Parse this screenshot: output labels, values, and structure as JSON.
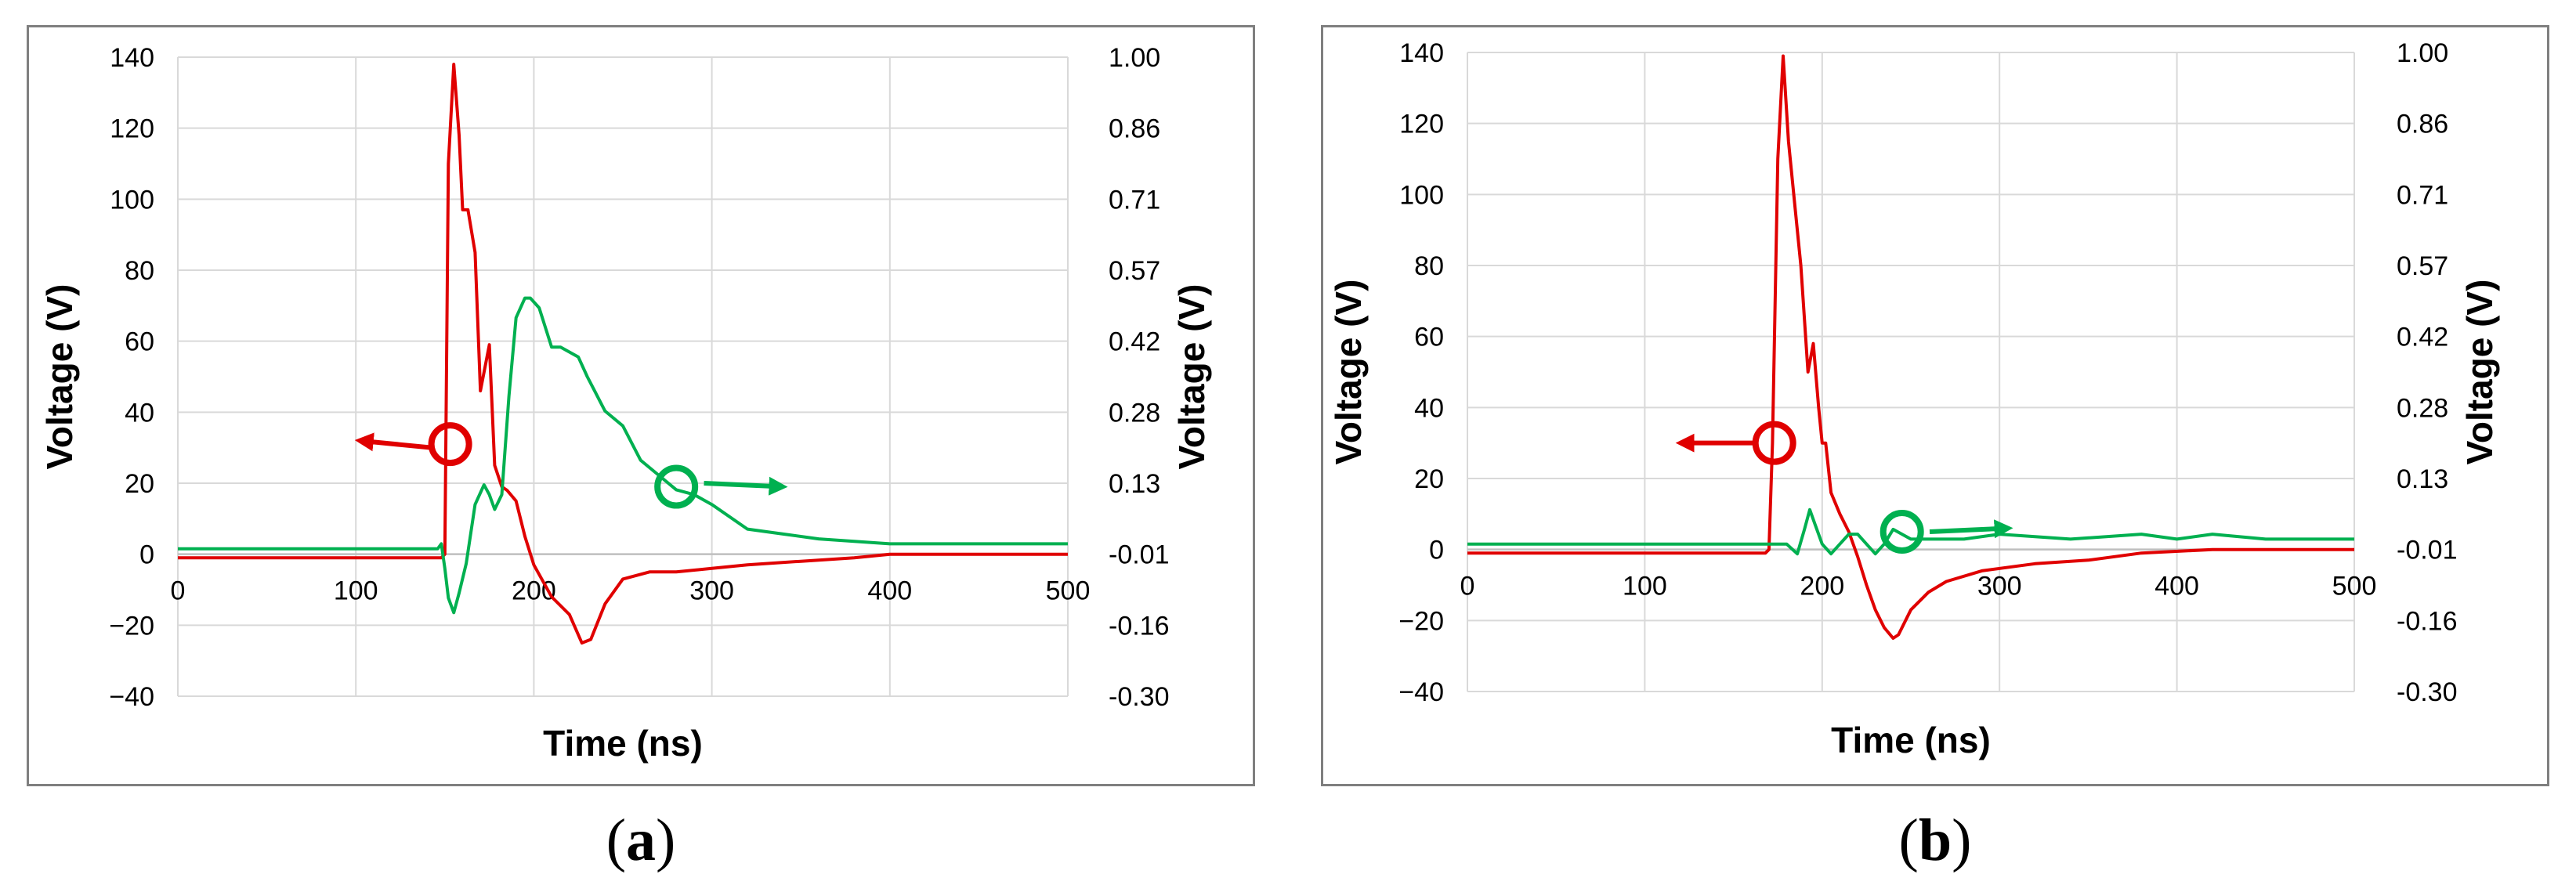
{
  "figure": {
    "captions": [
      {
        "open": "(",
        "letter": "a",
        "close": ")"
      },
      {
        "open": "(",
        "letter": "b",
        "close": ")"
      }
    ]
  },
  "colors": {
    "red_series": "#e00000",
    "green_series": "#00b050",
    "grid": "#d9d9d9",
    "axis": "#bfbfbf",
    "text": "#000000"
  },
  "chart_data": [
    {
      "type": "line",
      "panel": "a",
      "title": "",
      "xlabel": "Time (ns)",
      "ylabel": "Voltage (V)",
      "y2label": "Voltage (V)",
      "xlim": [
        0,
        500
      ],
      "ylim": [
        -40,
        140
      ],
      "y2lim": [
        -0.3,
        1.0
      ],
      "x_ticks": [
        "0",
        "100",
        "200",
        "300",
        "400",
        "500"
      ],
      "y_ticks": [
        "−40",
        "−20",
        "0",
        "20",
        "40",
        "60",
        "80",
        "100",
        "120",
        "140"
      ],
      "y2_ticks": [
        "-0.30",
        "-0.16",
        "-0.01",
        "0.13",
        "0.28",
        "0.42",
        "0.57",
        "0.71",
        "0.86",
        "1.00"
      ],
      "grid": true,
      "series": [
        {
          "axis": "left",
          "color": "#e00000",
          "x": [
            0,
            140,
            148,
            150,
            152,
            155,
            158,
            160,
            163,
            167,
            170,
            175,
            178,
            182,
            185,
            190,
            195,
            200,
            210,
            220,
            227,
            232,
            240,
            250,
            265,
            280,
            300,
            320,
            350,
            380,
            400,
            430,
            470,
            500
          ],
          "y": [
            -1,
            -1,
            -1,
            0,
            110,
            138,
            118,
            97,
            97,
            85,
            46,
            59,
            25,
            19,
            18,
            15,
            5,
            -3,
            -12,
            -17,
            -25,
            -24,
            -14,
            -7,
            -5,
            -5,
            -4,
            -3,
            -2,
            -1,
            0,
            0,
            0,
            0
          ]
        },
        {
          "axis": "right",
          "color": "#00b050",
          "x": [
            0,
            146,
            148,
            150,
            152,
            155,
            158,
            162,
            167,
            172,
            175,
            178,
            182,
            186,
            190,
            195,
            198,
            203,
            210,
            215,
            225,
            230,
            240,
            250,
            260,
            270,
            280,
            290,
            300,
            320,
            340,
            360,
            400,
            450,
            500
          ],
          "y": [
            0.0,
            0.0,
            0.01,
            -0.04,
            -0.1,
            -0.13,
            -0.09,
            -0.03,
            0.09,
            0.13,
            0.11,
            0.08,
            0.11,
            0.31,
            0.47,
            0.51,
            0.51,
            0.49,
            0.41,
            0.41,
            0.39,
            0.35,
            0.28,
            0.25,
            0.18,
            0.15,
            0.12,
            0.11,
            0.09,
            0.04,
            0.03,
            0.02,
            0.01,
            0.01,
            0.01
          ]
        }
      ]
    },
    {
      "type": "line",
      "panel": "b",
      "title": "",
      "xlabel": "Time (ns)",
      "ylabel": "Voltage (V)",
      "y2label": "Voltage (V)",
      "xlim": [
        0,
        500
      ],
      "ylim": [
        -40,
        140
      ],
      "y2lim": [
        -0.3,
        1.0
      ],
      "x_ticks": [
        "0",
        "100",
        "200",
        "300",
        "400",
        "500"
      ],
      "y_ticks": [
        "−40",
        "−20",
        "0",
        "20",
        "40",
        "60",
        "80",
        "100",
        "120",
        "140"
      ],
      "y2_ticks": [
        "-0.30",
        "-0.16",
        "-0.01",
        "0.13",
        "0.28",
        "0.42",
        "0.57",
        "0.71",
        "0.86",
        "1.00"
      ],
      "grid": true,
      "series": [
        {
          "axis": "left",
          "color": "#e00000",
          "x": [
            0,
            168,
            170,
            172,
            175,
            178,
            181,
            185,
            188,
            192,
            195,
            198,
            200,
            202,
            205,
            210,
            215,
            220,
            225,
            230,
            235,
            240,
            243,
            250,
            260,
            270,
            290,
            320,
            350,
            380,
            420,
            460,
            500
          ],
          "y": [
            -1,
            -1,
            0,
            30,
            110,
            139,
            115,
            95,
            80,
            50,
            58,
            40,
            30,
            30,
            16,
            10,
            5,
            -2,
            -10,
            -17,
            -22,
            -25,
            -24,
            -17,
            -12,
            -9,
            -6,
            -4,
            -3,
            -1,
            0,
            0,
            0
          ]
        },
        {
          "axis": "right",
          "color": "#00b050",
          "x": [
            0,
            180,
            183,
            186,
            190,
            193,
            196,
            200,
            205,
            210,
            215,
            220,
            225,
            230,
            235,
            240,
            245,
            250,
            260,
            280,
            300,
            340,
            380,
            400,
            420,
            450,
            480,
            500
          ],
          "y": [
            0.0,
            0.0,
            -0.01,
            -0.02,
            0.03,
            0.07,
            0.04,
            0.0,
            -0.02,
            0.0,
            0.02,
            0.02,
            0.0,
            -0.02,
            0.0,
            0.03,
            0.02,
            0.01,
            0.01,
            0.01,
            0.02,
            0.01,
            0.02,
            0.01,
            0.02,
            0.01,
            0.01,
            0.01
          ]
        }
      ]
    }
  ]
}
